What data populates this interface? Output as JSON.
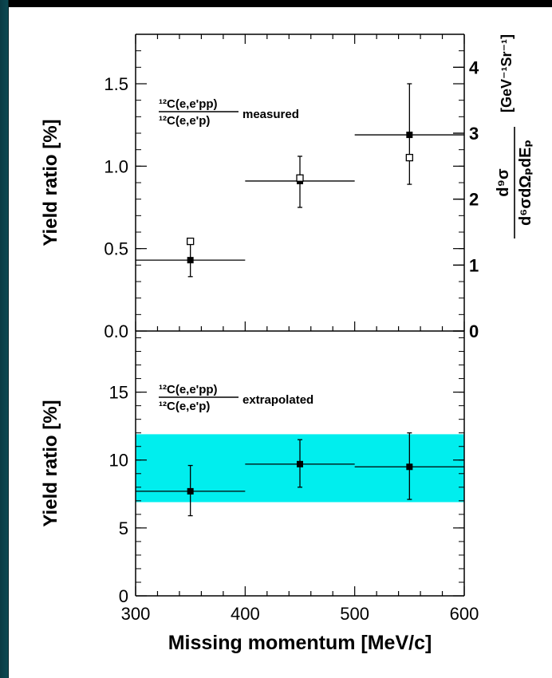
{
  "colors": {
    "band": "#00eeee",
    "marker": "#000000",
    "axis": "#000000"
  },
  "chart_data": [
    {
      "type": "scatter",
      "panel": "top",
      "xlabel": "Missing momentum [MeV/c]",
      "ylabel": "Yield ratio  [%]",
      "xlim": [
        300,
        600
      ],
      "ylim": [
        0.0,
        1.8
      ],
      "y_ticks": [
        "0.0",
        "0.5",
        "1.0",
        "1.5"
      ],
      "right_axis": {
        "ylim": [
          0,
          4.5
        ],
        "ticks": [
          "0",
          "1",
          "2",
          "3",
          "4"
        ],
        "label_parts": {
          "num": "d⁹σ",
          "den": "d⁶σdΩₚdEₚ",
          "units": "[GeV⁻¹Sr⁻¹]"
        }
      },
      "annotation": {
        "numerator": "¹²C(e,e'pp)",
        "denominator": "¹²C(e,e'p)",
        "suffix": "measured"
      },
      "series": [
        {
          "marker": "filled-square",
          "points": [
            {
              "x": 350,
              "y": 0.43,
              "xerr_lo": 300,
              "xerr_hi": 400,
              "yerr_lo": 0.33,
              "yerr_hi": 0.54
            },
            {
              "x": 450,
              "y": 0.91,
              "xerr_lo": 400,
              "xerr_hi": 500,
              "yerr_lo": 0.75,
              "yerr_hi": 1.06
            },
            {
              "x": 550,
              "y": 1.19,
              "xerr_lo": 500,
              "xerr_hi": 600,
              "yerr_lo": 0.89,
              "yerr_hi": 1.5
            }
          ]
        },
        {
          "marker": "open-square",
          "axis": "right",
          "points": [
            {
              "x": 350,
              "y": 1.36
            },
            {
              "x": 450,
              "y": 2.32
            },
            {
              "x": 550,
              "y": 2.63
            }
          ]
        }
      ]
    },
    {
      "type": "scatter",
      "panel": "bottom",
      "xlabel": "Missing momentum [MeV/c]",
      "ylabel": "Yield ratio  [%]",
      "xlim": [
        300,
        600
      ],
      "ylim": [
        0,
        19.5
      ],
      "x_ticks": [
        "300",
        "400",
        "500",
        "600"
      ],
      "y_ticks": [
        "0",
        "5",
        "10",
        "15"
      ],
      "annotation": {
        "numerator": "¹²C(e,e'pp)",
        "denominator": "¹²C(e,e'p)",
        "suffix": "extrapolated"
      },
      "band": {
        "y_lo": 6.9,
        "y_hi": 11.9
      },
      "series": [
        {
          "marker": "filled-square",
          "points": [
            {
              "x": 350,
              "y": 7.7,
              "xerr_lo": 300,
              "xerr_hi": 400,
              "yerr_lo": 5.9,
              "yerr_hi": 9.6
            },
            {
              "x": 450,
              "y": 9.7,
              "xerr_lo": 400,
              "xerr_hi": 500,
              "yerr_lo": 8.0,
              "yerr_hi": 11.5
            },
            {
              "x": 550,
              "y": 9.5,
              "xerr_lo": 500,
              "xerr_hi": 600,
              "yerr_lo": 7.1,
              "yerr_hi": 12.0
            }
          ]
        }
      ]
    }
  ]
}
